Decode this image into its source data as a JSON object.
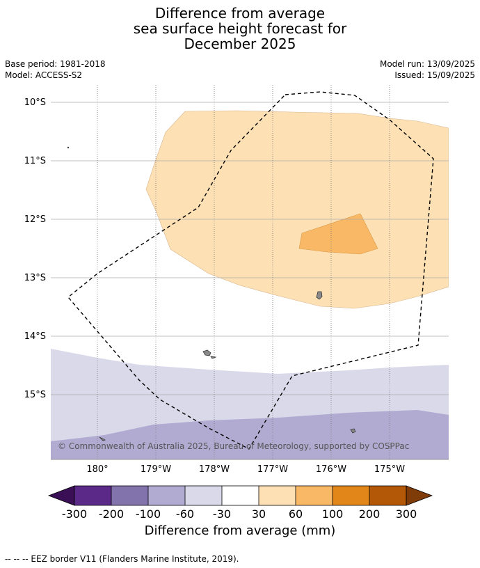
{
  "title": {
    "line1": "Difference from average",
    "line2": "sea surface height forecast for",
    "line3": "December 2025"
  },
  "meta": {
    "base_period": "Base period: 1981-2018",
    "model": "Model: ACCESS-S2",
    "model_run": "Model run: 13/09/2025",
    "issued": "Issued: 15/09/2025"
  },
  "map": {
    "lat_labels": [
      "10°S",
      "11°S",
      "12°S",
      "13°S",
      "14°S",
      "15°S"
    ],
    "lon_labels": [
      "180°",
      "179°W",
      "178°W",
      "177°W",
      "176°W",
      "175°W"
    ],
    "copyright": "© Commonwealth of Australia 2025, Bureau of Meteorology, supported by COSPPac",
    "colors": {
      "30_60": "#fde0b4",
      "60_100": "#f9b865",
      "neg30_neg60": "#d9d9ea",
      "neg60_neg100": "#b1abd2"
    }
  },
  "colorbar": {
    "ticks": [
      "-300",
      "-200",
      "-100",
      "-60",
      "-30",
      "30",
      "60",
      "100",
      "200",
      "300"
    ],
    "colors": [
      "#3b0f55",
      "#5b2a89",
      "#8273ad",
      "#b1abd2",
      "#d9d9ea",
      "#ffffff",
      "#fde0b4",
      "#f9b865",
      "#e3861a",
      "#b35806",
      "#7f3b08"
    ],
    "title": "Difference from average (mm)"
  },
  "footnote": "--  --  -- EEZ border V11 (Flanders Marine Institute, 2019)."
}
